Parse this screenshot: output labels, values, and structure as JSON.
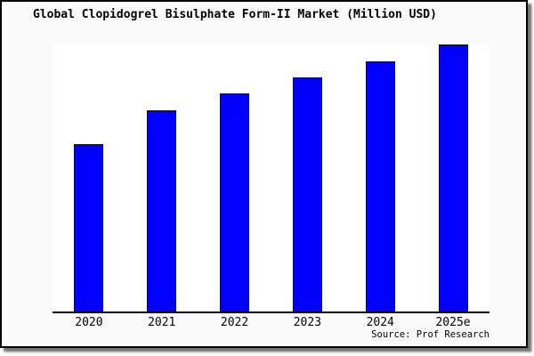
{
  "chart_data": {
    "type": "bar",
    "title": "Global Clopidogrel Bisulphate Form-II Market (Million USD)",
    "categories": [
      "2020",
      "2021",
      "2022",
      "2023",
      "2024",
      "2025e"
    ],
    "values": [
      62.8,
      75.2,
      81.6,
      87.8,
      93.8,
      100
    ],
    "ylim": [
      0,
      100.3
    ],
    "xlabel": "",
    "ylabel": "",
    "grid": false,
    "legend": false,
    "y_axis_labels_visible": false,
    "source_label": "Source: Prof Research",
    "colors": {
      "bar_fill": "#0000fc",
      "bar_border": "#000000",
      "plot_bg": "#ffffff",
      "frame_bg": "#fafafa",
      "axis": "#000000",
      "text": "#000000"
    }
  }
}
